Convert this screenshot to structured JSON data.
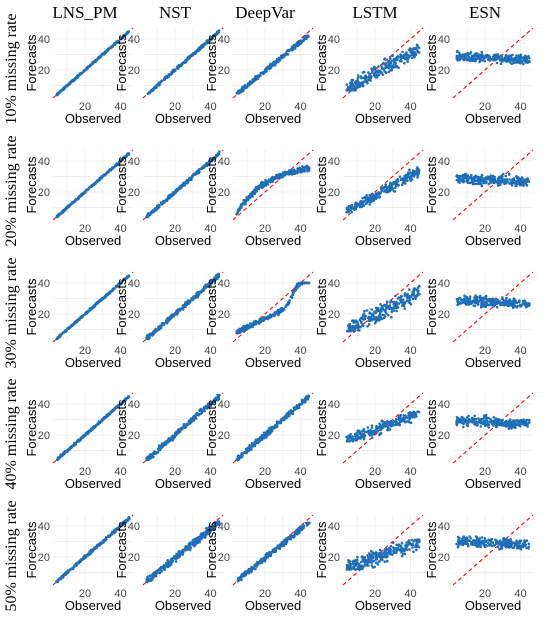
{
  "colors": {
    "points": "#1f6fb8",
    "reference_line": "#ff0000",
    "grid": "#ececec"
  },
  "figure": {
    "column_titles": [
      "LNS_PM",
      "NST",
      "DeepVar",
      "LSTM",
      "ESN"
    ],
    "row_titles": [
      "10% missing rate",
      "20% missing rate",
      "30% missing rate",
      "40% missing rate",
      "50% missing rate"
    ]
  },
  "chart_data": {
    "type": "scatter",
    "layout": "grid-5x5",
    "xlabel": "Observed",
    "ylabel": "Forecasts",
    "xlim": [
      2,
      47
    ],
    "ylim": [
      2,
      47
    ],
    "xticks": [
      20,
      40
    ],
    "yticks": [
      20,
      40
    ],
    "reference_line": "y = x (red dashed)",
    "grid": true,
    "panels": [
      {
        "row": "10% missing rate",
        "method": "LNS_PM",
        "shape": "identity",
        "spread": 0.5,
        "y_min": 5,
        "y_max": 46
      },
      {
        "row": "10% missing rate",
        "method": "NST",
        "shape": "identity",
        "spread": 0.7,
        "y_min": 5,
        "y_max": 46
      },
      {
        "row": "10% missing rate",
        "method": "DeepVar",
        "shape": "slightly_under",
        "spread": 1.2,
        "y_min": 6,
        "y_max": 43
      },
      {
        "row": "10% missing rate",
        "method": "LSTM",
        "shape": "compressed",
        "spread": 4,
        "y_min": 8,
        "y_max": 36
      },
      {
        "row": "10% missing rate",
        "method": "ESN",
        "shape": "flat",
        "spread": 2.5,
        "y_min": 22,
        "y_max": 33
      },
      {
        "row": "20% missing rate",
        "method": "LNS_PM",
        "shape": "identity",
        "spread": 0.5,
        "y_min": 5,
        "y_max": 46
      },
      {
        "row": "20% missing rate",
        "method": "NST",
        "shape": "identity",
        "spread": 0.9,
        "y_min": 5,
        "y_max": 46
      },
      {
        "row": "20% missing rate",
        "method": "DeepVar",
        "shape": "saturating",
        "spread": 1.5,
        "y_min": 5,
        "y_max": 38
      },
      {
        "row": "20% missing rate",
        "method": "LSTM",
        "shape": "compressed",
        "spread": 3,
        "y_min": 8,
        "y_max": 36
      },
      {
        "row": "20% missing rate",
        "method": "ESN",
        "shape": "flat",
        "spread": 2.5,
        "y_min": 21,
        "y_max": 34
      },
      {
        "row": "30% missing rate",
        "method": "LNS_PM",
        "shape": "identity",
        "spread": 0.5,
        "y_min": 5,
        "y_max": 46
      },
      {
        "row": "30% missing rate",
        "method": "NST",
        "shape": "identity",
        "spread": 1.2,
        "y_min": 5,
        "y_max": 46
      },
      {
        "row": "30% missing rate",
        "method": "DeepVar",
        "shape": "s_curve",
        "spread": 1.2,
        "y_min": 5,
        "y_max": 39
      },
      {
        "row": "30% missing rate",
        "method": "LSTM",
        "shape": "compressed",
        "spread": 5,
        "y_min": 10,
        "y_max": 37
      },
      {
        "row": "30% missing rate",
        "method": "ESN",
        "shape": "flat",
        "spread": 2.5,
        "y_min": 21,
        "y_max": 34
      },
      {
        "row": "40% missing rate",
        "method": "LNS_PM",
        "shape": "identity",
        "spread": 0.6,
        "y_min": 5,
        "y_max": 46
      },
      {
        "row": "40% missing rate",
        "method": "NST",
        "shape": "identity",
        "spread": 1.5,
        "y_min": 5,
        "y_max": 46
      },
      {
        "row": "40% missing rate",
        "method": "DeepVar",
        "shape": "identity",
        "spread": 1.5,
        "y_min": 5,
        "y_max": 44
      },
      {
        "row": "40% missing rate",
        "method": "LSTM",
        "shape": "band",
        "spread": 3,
        "y_min": 17,
        "y_max": 34
      },
      {
        "row": "40% missing rate",
        "method": "ESN",
        "shape": "flat",
        "spread": 2.5,
        "y_min": 22,
        "y_max": 34
      },
      {
        "row": "50% missing rate",
        "method": "LNS_PM",
        "shape": "identity",
        "spread": 0.8,
        "y_min": 5,
        "y_max": 46
      },
      {
        "row": "50% missing rate",
        "method": "NST",
        "shape": "slightly_under",
        "spread": 2,
        "y_min": 5,
        "y_max": 43
      },
      {
        "row": "50% missing rate",
        "method": "DeepVar",
        "shape": "slightly_under",
        "spread": 1.5,
        "y_min": 5,
        "y_max": 41
      },
      {
        "row": "50% missing rate",
        "method": "LSTM",
        "shape": "band",
        "spread": 4,
        "y_min": 13,
        "y_max": 30
      },
      {
        "row": "50% missing rate",
        "method": "ESN",
        "shape": "flat",
        "spread": 2.5,
        "y_min": 24,
        "y_max": 34
      }
    ]
  }
}
